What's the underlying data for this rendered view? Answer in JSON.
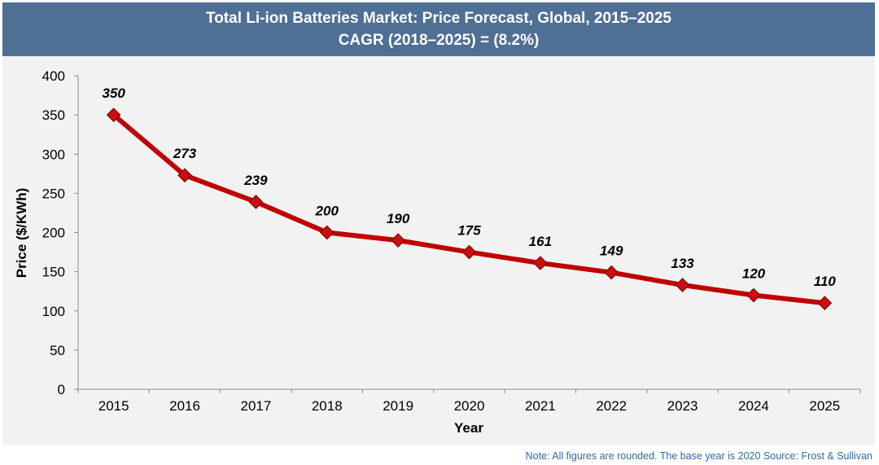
{
  "header": {
    "title_line1": "Total Li-ion Batteries Market: Price Forecast, Global, 2015–2025",
    "title_line2": "CAGR (2018–2025) = (8.2%)"
  },
  "chart_data": {
    "type": "line",
    "title": "Total Li-ion Batteries Market: Price Forecast, Global, 2015–2025",
    "subtitle": "CAGR (2018–2025) = (8.2%)",
    "xlabel": "Year",
    "ylabel": "Price ($/KWh)",
    "ylim": [
      0,
      400
    ],
    "yticks": [
      0,
      50,
      100,
      150,
      200,
      250,
      300,
      350,
      400
    ],
    "categories": [
      "2015",
      "2016",
      "2017",
      "2018",
      "2019",
      "2020",
      "2021",
      "2022",
      "2023",
      "2024",
      "2025"
    ],
    "series": [
      {
        "name": "Price",
        "values": [
          350,
          273,
          239,
          200,
          190,
          175,
          161,
          149,
          133,
          120,
          110
        ]
      }
    ],
    "grid": false,
    "colors": {
      "line": "#c00000",
      "marker": "#c81010",
      "header_bg": "#4f6f94",
      "plot_bg": "#f2f2f2"
    }
  },
  "footer": {
    "note": "Note: All figures are rounded. The base year is 2020 Source: Frost & Sullivan"
  }
}
